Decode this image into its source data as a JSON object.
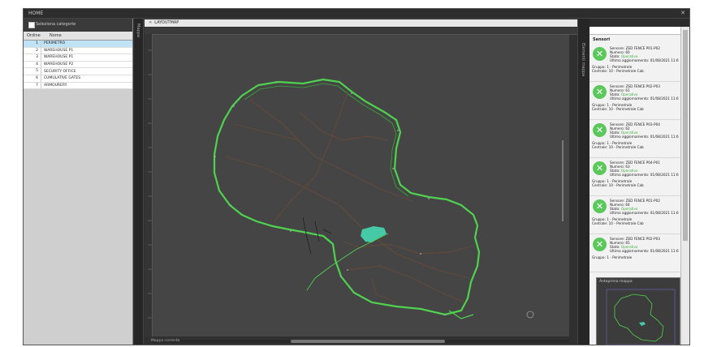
{
  "window": {
    "title": "HOME",
    "close_icon": "close-icon"
  },
  "left_panel": {
    "checkbox_label": "Seleziona categorie",
    "headers": [
      "Ordine",
      "Nome"
    ],
    "rows": [
      {
        "num": "1",
        "name": "PERIMETRO"
      },
      {
        "num": "2",
        "name": "WAREHOUSE P1"
      },
      {
        "num": "3",
        "name": "WAREHOUSE P1"
      },
      {
        "num": "4",
        "name": "WAREHOUSE P2"
      },
      {
        "num": "5",
        "name": "SECURITY OFFICE"
      },
      {
        "num": "6",
        "name": "CUMULATIVE GATES"
      },
      {
        "num": "7",
        "name": "ARMOURERY"
      }
    ]
  },
  "map": {
    "vertical_tab": "Mappa",
    "tab_label": "LAYOUTMAP",
    "status": "Mappa corrente"
  },
  "right_panel": {
    "vertical_tab": "Elementi mappa",
    "section_title": "Sensori",
    "cards": [
      {
        "sensor": "Sensore: ZED FENCE P01-P02",
        "num": "Numero: 60",
        "state_label": "Stato:",
        "state": "Operativo",
        "update": "Ultimo aggiornamento: 01/08/2021 11:6",
        "group": "Gruppo: 1 - Perimetrale",
        "central": "Centrale: 10 - Perimetrale Cab"
      },
      {
        "sensor": "Sensore: ZED FENCE P02-P03",
        "num": "Numero: 61",
        "state_label": "Stato:",
        "state": "Operativo",
        "update": "Ultimo aggiornamento: 01/08/2021 11:6",
        "group": "Gruppo: 1 - Perimetrale",
        "central": "Centrale: 10 - Perimetrale Cab"
      },
      {
        "sensor": "Sensore: ZED FENCE P03-P04",
        "num": "Numero: 62",
        "state_label": "Stato:",
        "state": "Operativo",
        "update": "Ultimo aggiornamento: 01/08/2021 11:6",
        "group": "Gruppo: 1 - Perimetrale",
        "central": "Centrale: 10 - Perimetrale Cab"
      },
      {
        "sensor": "Sensore: ZED FENCE P04-P01",
        "num": "Numero: 63",
        "state_label": "Stato:",
        "state": "Operativo",
        "update": "Ultimo aggiornamento: 01/08/2021 11:6",
        "group": "Gruppo: 1 - Perimetrale",
        "central": "Centrale: 10 - Perimetrale Cab"
      },
      {
        "sensor": "Sensore: ZED FENCE P01-P02",
        "num": "Numero: 64",
        "state_label": "Stato:",
        "state": "Operativo",
        "update": "Ultimo aggiornamento: 01/08/2021 11:6",
        "group": "Gruppo: 1 - Perimetrale",
        "central": "Centrale: 10 - Perimetrale Cab"
      },
      {
        "sensor": "Sensore: ZED FENCE P02-P03",
        "num": "Numero: 65",
        "state_label": "Stato:",
        "state": "Operativo",
        "update": "Ultimo aggiornamento: 01/08/2021 11:6",
        "group": "Gruppo: 1 - Perimetrale",
        "central": ""
      }
    ],
    "minimap_title": "Anteprima mappa"
  },
  "colors": {
    "fence": "#4fd24f",
    "path": "#6b4a38",
    "lake": "#45c9a7",
    "ok": "#5cc85c"
  }
}
